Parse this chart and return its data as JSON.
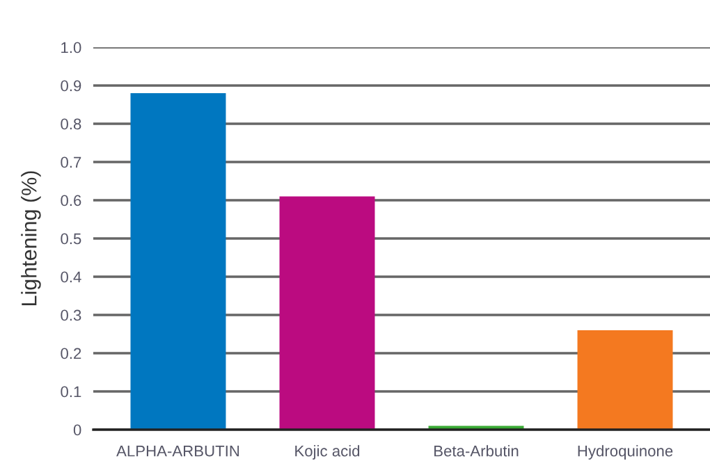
{
  "chart_data": {
    "type": "bar",
    "ylabel": "Lightening (%)",
    "categories": [
      "ALPHA-ARBUTIN",
      "Kojic acid",
      "Beta-Arbutin",
      "Hydroquinone"
    ],
    "values": [
      0.88,
      0.61,
      0.01,
      0.26
    ],
    "colors": [
      "#0077c0",
      "#bb0b80",
      "#3aaa35",
      "#f47920"
    ],
    "ylim": [
      0,
      1.0
    ],
    "yticks": [
      0,
      {
        "value": 0.1,
        "label": "0.1"
      },
      {
        "value": 0.2,
        "label": "0.2"
      },
      {
        "value": 0.3,
        "label": "0.3"
      },
      {
        "value": 0.4,
        "label": "0.4"
      },
      {
        "value": 0.5,
        "label": "0.5"
      },
      {
        "value": 0.6,
        "label": "0.6"
      },
      {
        "value": 0.7,
        "label": "0.7"
      },
      {
        "value": 0.8,
        "label": "0.8"
      },
      {
        "value": 0.9,
        "label": "0.9"
      },
      {
        "value": 1.0,
        "label": "1.0"
      }
    ],
    "grid": "y"
  }
}
